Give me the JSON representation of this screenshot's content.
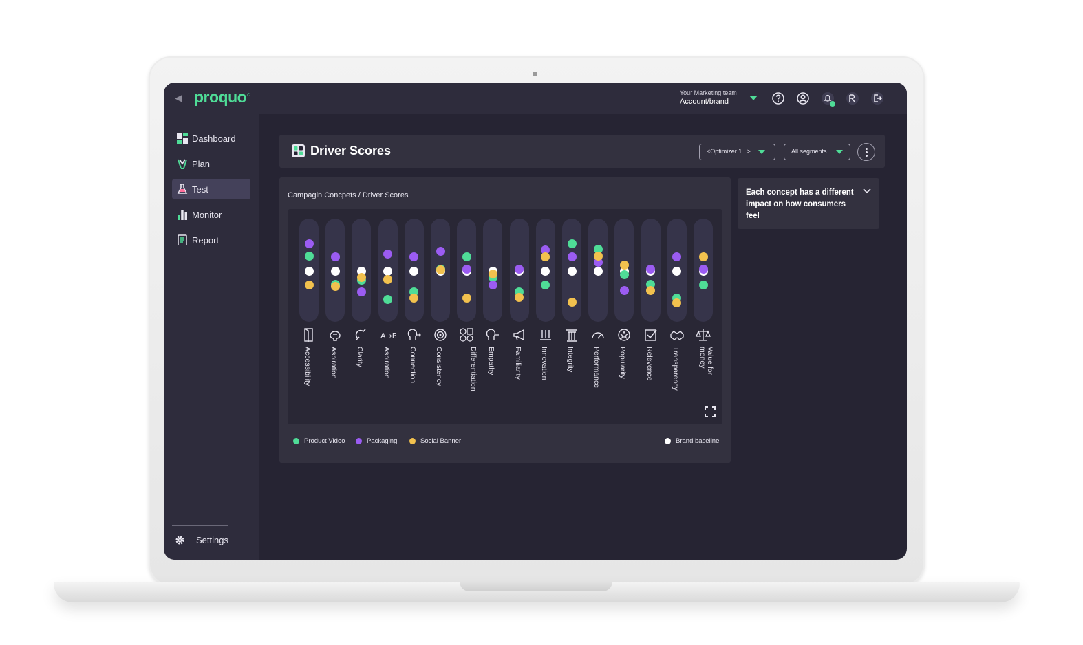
{
  "topbar": {
    "logo": "proquo",
    "team_label": "Your Marketing team",
    "account_label": "Account/brand",
    "icons": [
      "chevron-left-icon",
      "help-icon",
      "user-icon",
      "bell-icon",
      "translate-icon",
      "logout-icon"
    ]
  },
  "sidebar": {
    "items": [
      {
        "label": "Dashboard",
        "icon": "dashboard-icon",
        "active": false
      },
      {
        "label": "Plan",
        "icon": "plan-icon",
        "active": false
      },
      {
        "label": "Test",
        "icon": "flask-icon",
        "active": true
      },
      {
        "label": "Monitor",
        "icon": "bar-chart-icon",
        "active": false
      },
      {
        "label": "Report",
        "icon": "report-icon",
        "active": false
      }
    ],
    "settings_label": "Settings"
  },
  "header": {
    "title": "Driver Scores",
    "optimizer_dropdown": "<Optimizer 1...>",
    "segments_dropdown": "All segments"
  },
  "card": {
    "breadcrumb": "Campagin Concpets / Driver Scores"
  },
  "info_panel": {
    "text": "Each concept has a different impact on how consumers feel"
  },
  "colors": {
    "product_video": "#4fdc97",
    "packaging": "#9b5cf2",
    "social_banner": "#f2c14e",
    "brand_baseline": "#ffffff",
    "background": "#262433"
  },
  "chart_data": {
    "type": "scatter",
    "drivers": [
      "Accessibility",
      "Aspiration",
      "Clarity",
      "Aspiration",
      "Connection",
      "Consistency",
      "Differentiation",
      "Empathy",
      "Familiarity",
      "Innovation",
      "Integrity",
      "Performance",
      "Popularity",
      "Relevence",
      "Transparency",
      "Value for money"
    ],
    "driver_icons": [
      "door-icon",
      "brain-icon",
      "magnet-icon",
      "a-b-icon",
      "head-arrow-icon",
      "target-icon",
      "shapes-icon",
      "head-heart-icon",
      "megaphone-icon",
      "flask-rack-icon",
      "pillar-icon",
      "gauge-icon",
      "star-badge-icon",
      "checkbox-icon",
      "handshake-icon",
      "scales-icon"
    ],
    "series": [
      {
        "name": "Product Video",
        "values": [
          0.4,
          -0.35,
          -0.25,
          -0.75,
          -0.55,
          0.05,
          0.38,
          -0.18,
          -0.55,
          -0.38,
          0.72,
          0.58,
          -0.1,
          -0.35,
          -0.72,
          -0.38
        ]
      },
      {
        "name": "Packaging",
        "values": [
          0.72,
          0.38,
          -0.55,
          0.45,
          0.38,
          0.52,
          0.05,
          -0.38,
          0.05,
          0.55,
          0.38,
          0.22,
          -0.52,
          0.05,
          0.38,
          0.05
        ]
      },
      {
        "name": "Social Banner",
        "values": [
          -0.38,
          -0.4,
          -0.18,
          -0.22,
          -0.72,
          0.02,
          -0.72,
          -0.08,
          -0.7,
          0.38,
          -0.82,
          0.4,
          0.16,
          -0.52,
          -0.85,
          0.38
        ]
      },
      {
        "name": "Brand baseline",
        "values": [
          0,
          0,
          0,
          0,
          0,
          0,
          0,
          0,
          0,
          0,
          0,
          0,
          0,
          0,
          0,
          0
        ]
      }
    ],
    "ylim": [
      -1,
      1
    ],
    "legend": "bottom",
    "grid": false
  }
}
